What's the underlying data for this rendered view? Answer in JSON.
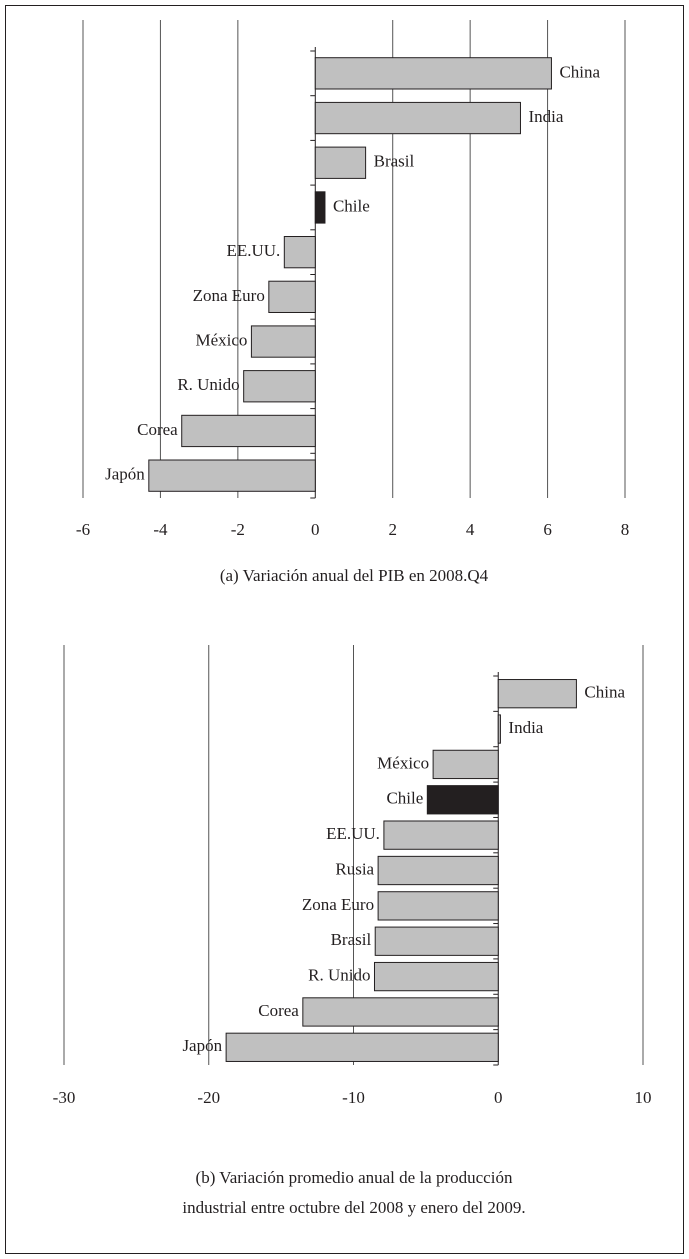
{
  "chart_data": [
    {
      "type": "barh",
      "title": [
        "(a) Variación anual del PIB en 2008.Q4"
      ],
      "categories": [
        "China",
        "India",
        "Brasil",
        "Chile",
        "EE.UU.",
        "Zona Euro",
        "México",
        "R. Unido",
        "Corea",
        "Japón"
      ],
      "values": [
        6.1,
        5.3,
        1.3,
        0.25,
        -0.8,
        -1.2,
        -1.65,
        -1.85,
        -3.45,
        -4.3
      ],
      "colors": [
        "#c0c0c0",
        "#c0c0c0",
        "#c0c0c0",
        "#231f20",
        "#c0c0c0",
        "#c0c0c0",
        "#c0c0c0",
        "#c0c0c0",
        "#c0c0c0",
        "#c0c0c0"
      ],
      "xlim": [
        -6,
        8
      ],
      "xticks": [
        -6,
        -4,
        -2,
        0,
        2,
        4,
        6,
        8
      ],
      "grid": true
    },
    {
      "type": "barh",
      "title": [
        "(b) Variación promedio anual de la producción",
        "industrial entre octubre del 2008 y enero del 2009."
      ],
      "categories": [
        "China",
        "India",
        "México",
        "Chile",
        "EE.UU.",
        "Rusia",
        "Zona Euro",
        "Brasil",
        "R. Unido",
        "Corea",
        "Japón"
      ],
      "values": [
        5.4,
        0.15,
        -4.5,
        -4.9,
        -7.9,
        -8.3,
        -8.3,
        -8.5,
        -8.55,
        -13.5,
        -18.8
      ],
      "colors": [
        "#c0c0c0",
        "#c0c0c0",
        "#c0c0c0",
        "#231f20",
        "#c0c0c0",
        "#c0c0c0",
        "#c0c0c0",
        "#c0c0c0",
        "#c0c0c0",
        "#c0c0c0",
        "#c0c0c0"
      ],
      "xlim": [
        -30,
        10
      ],
      "xticks": [
        -30,
        -20,
        -10,
        0,
        10
      ],
      "grid": true
    }
  ]
}
